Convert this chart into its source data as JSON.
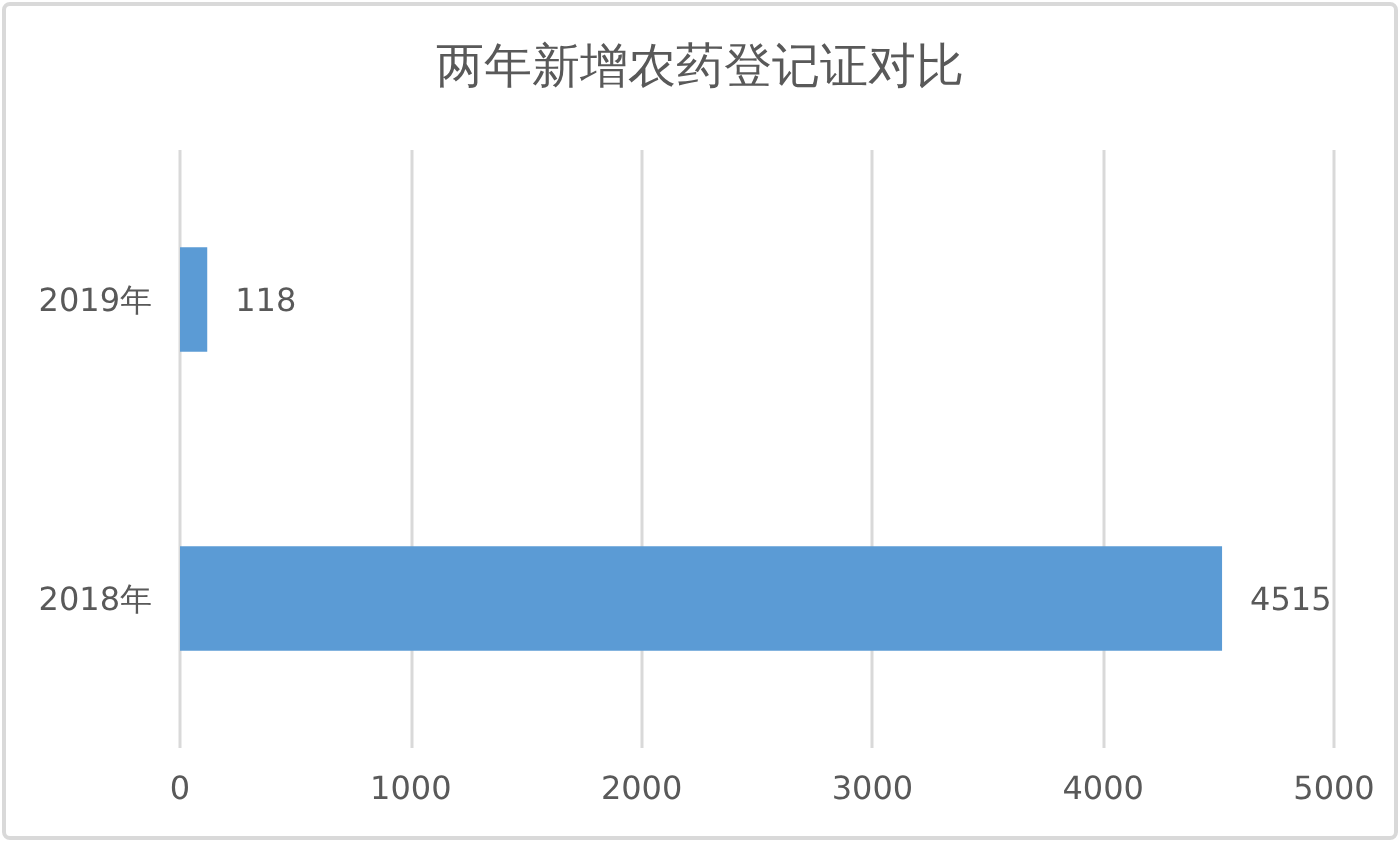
{
  "chart_data": {
    "type": "bar",
    "orientation": "horizontal",
    "title": "两年新增农药登记证对比",
    "categories": [
      "2019年",
      "2018年"
    ],
    "values": [
      118,
      4515
    ],
    "color": "#5b9bd5",
    "xlim": [
      0,
      5000
    ],
    "xticks": [
      0,
      1000,
      2000,
      3000,
      4000,
      5000
    ],
    "grid": "x",
    "data_labels": true
  }
}
